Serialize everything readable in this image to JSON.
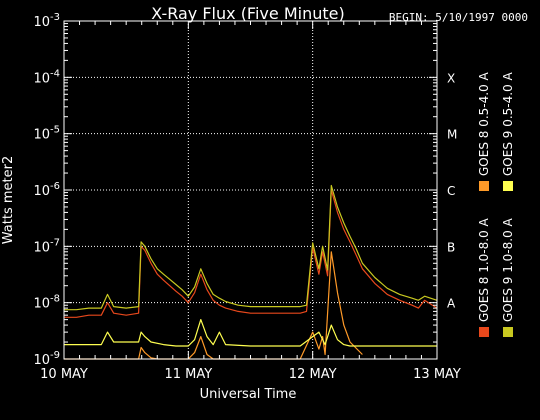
{
  "header": {
    "title": "X-Ray Flux (Five Minute)",
    "begin": "BEGIN: 5/10/1997 0000"
  },
  "chart_data": {
    "type": "line",
    "title": "X-Ray Flux (Five Minute)",
    "xlabel": "Universal Time",
    "ylabel": "Watts meter2",
    "yscale": "log",
    "ylim": [
      1e-09,
      0.001
    ],
    "xlim": [
      "10 MAY",
      "13 MAY"
    ],
    "x_ticks": [
      "10 MAY",
      "11 MAY",
      "12 MAY",
      "13 MAY"
    ],
    "y_ticks": [
      {
        "base": "10",
        "exp": "-9"
      },
      {
        "base": "10",
        "exp": "-8"
      },
      {
        "base": "10",
        "exp": "-7"
      },
      {
        "base": "10",
        "exp": "-6"
      },
      {
        "base": "10",
        "exp": "-5"
      },
      {
        "base": "10",
        "exp": "-4"
      },
      {
        "base": "10",
        "exp": "-3"
      }
    ],
    "flare_classes": [
      "A",
      "B",
      "C",
      "M",
      "X"
    ],
    "grid": "dotted",
    "legend_position": "right, vertical",
    "x_unit_note": "x values are days after 10 MAY 00:00 UT",
    "series": [
      {
        "name": "GOES 8 1.0-8.0 A",
        "color": "#e8481c",
        "x": [
          0,
          0.1,
          0.2,
          0.3,
          0.35,
          0.4,
          0.5,
          0.6,
          0.62,
          0.65,
          0.7,
          0.75,
          0.8,
          0.85,
          0.9,
          0.95,
          1.0,
          1.05,
          1.1,
          1.15,
          1.2,
          1.25,
          1.3,
          1.4,
          1.5,
          1.6,
          1.7,
          1.8,
          1.9,
          1.95,
          2.0,
          2.05,
          2.08,
          2.12,
          2.15,
          2.2,
          2.25,
          2.3,
          2.35,
          2.4,
          2.5,
          2.6,
          2.7,
          2.8,
          2.85,
          2.9,
          3.0
        ],
        "y": [
          5.5e-09,
          5.5e-09,
          6e-09,
          6e-09,
          1e-08,
          6.5e-09,
          6e-09,
          6.5e-09,
          1e-07,
          8.5e-08,
          5e-08,
          3.2e-08,
          2.5e-08,
          2e-08,
          1.6e-08,
          1.3e-08,
          1e-08,
          1.5e-08,
          3.2e-08,
          1.7e-08,
          1.1e-08,
          9e-09,
          8e-09,
          7e-09,
          6.5e-09,
          6.5e-09,
          6.5e-09,
          6.5e-09,
          6.5e-09,
          7e-09,
          9.5e-08,
          3.2e-08,
          8e-08,
          3e-08,
          1e-06,
          4e-07,
          2e-07,
          1.2e-07,
          7e-08,
          4e-08,
          2.2e-08,
          1.4e-08,
          1.1e-08,
          9e-09,
          8e-09,
          1.1e-08,
          8e-09
        ]
      },
      {
        "name": "GOES 8 0.5-4.0 A",
        "color": "#ff9a28",
        "x": [
          0,
          0.6,
          0.62,
          0.65,
          0.7,
          0.75,
          0.8,
          0.85,
          0.9,
          1.0,
          1.05,
          1.1,
          1.15,
          1.2,
          1.3,
          1.5,
          1.7,
          1.9,
          2.0,
          2.05,
          2.08,
          2.1,
          2.15,
          2.2,
          2.25,
          2.3,
          2.4
        ],
        "y": [
          1e-09,
          1e-09,
          1.6e-09,
          1.3e-09,
          1.05e-09,
          1e-09,
          1e-09,
          1e-09,
          1e-09,
          1e-09,
          1.3e-09,
          2.5e-09,
          1.2e-09,
          1e-09,
          1e-09,
          1e-09,
          1e-09,
          1e-09,
          3e-09,
          1.5e-09,
          2.5e-09,
          1.2e-09,
          8e-08,
          1.5e-08,
          4e-09,
          2e-09,
          1.2e-09
        ]
      },
      {
        "name": "GOES 9 1.0-8.0 A",
        "color": "#c8c820",
        "x": [
          0,
          0.1,
          0.2,
          0.3,
          0.35,
          0.4,
          0.5,
          0.6,
          0.62,
          0.65,
          0.7,
          0.75,
          0.8,
          0.85,
          0.9,
          0.95,
          1.0,
          1.05,
          1.1,
          1.15,
          1.2,
          1.25,
          1.3,
          1.4,
          1.5,
          1.6,
          1.7,
          1.8,
          1.9,
          1.95,
          2.0,
          2.05,
          2.08,
          2.12,
          2.15,
          2.2,
          2.25,
          2.3,
          2.35,
          2.4,
          2.5,
          2.6,
          2.7,
          2.8,
          2.85,
          2.9,
          3.0
        ],
        "y": [
          7.5e-09,
          7.5e-09,
          8e-09,
          8e-09,
          1.4e-08,
          8.5e-09,
          8e-09,
          8.5e-09,
          1.2e-07,
          1e-07,
          6e-08,
          4e-08,
          3.2e-08,
          2.6e-08,
          2.1e-08,
          1.7e-08,
          1.3e-08,
          1.9e-08,
          4e-08,
          2.2e-08,
          1.4e-08,
          1.2e-08,
          1.05e-08,
          9e-09,
          8.5e-09,
          8.5e-09,
          8.5e-09,
          8.5e-09,
          8.5e-09,
          9e-09,
          1.15e-07,
          4e-08,
          1e-07,
          3.8e-08,
          1.2e-06,
          5e-07,
          2.6e-07,
          1.5e-07,
          9e-08,
          5e-08,
          2.8e-08,
          1.8e-08,
          1.4e-08,
          1.2e-08,
          1.1e-08,
          1.3e-08,
          1.1e-08
        ]
      },
      {
        "name": "GOES 9 0.5-4.0 A",
        "color": "#ffff50",
        "x": [
          0,
          0.1,
          0.3,
          0.35,
          0.4,
          0.6,
          0.62,
          0.65,
          0.7,
          0.8,
          0.9,
          1.0,
          1.05,
          1.1,
          1.15,
          1.2,
          1.25,
          1.3,
          1.5,
          1.7,
          1.9,
          2.0,
          2.05,
          2.1,
          2.15,
          2.2,
          2.25,
          2.3,
          2.4,
          2.6,
          2.8,
          3.0
        ],
        "y": [
          1.8e-09,
          1.8e-09,
          1.8e-09,
          3e-09,
          2e-09,
          2e-09,
          3e-09,
          2.5e-09,
          2e-09,
          1.8e-09,
          1.7e-09,
          1.7e-09,
          2.2e-09,
          5e-09,
          2.5e-09,
          1.8e-09,
          3e-09,
          1.8e-09,
          1.7e-09,
          1.7e-09,
          1.7e-09,
          2.5e-09,
          3e-09,
          1.8e-09,
          4e-09,
          2.2e-09,
          1.8e-09,
          1.7e-09,
          1.7e-09,
          1.7e-09,
          1.7e-09,
          1.7e-09
        ]
      }
    ]
  }
}
